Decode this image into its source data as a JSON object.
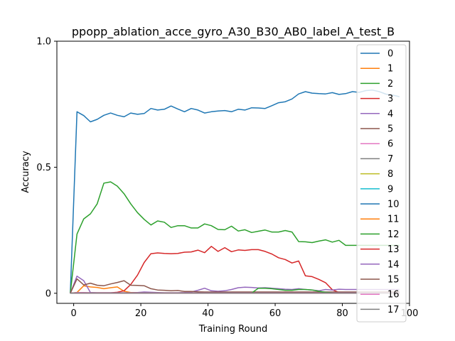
{
  "chart_data": {
    "type": "line",
    "title": "ppopp_ablation_acce_gyro_A30_B30_AB0_label_A_test_B",
    "xlabel": "Training Round",
    "ylabel": "Accuracy",
    "xlim": [
      -5,
      100
    ],
    "ylim": [
      -0.04,
      1.0
    ],
    "xticks": [
      0,
      20,
      40,
      60,
      80,
      100
    ],
    "yticks": [
      0,
      0.5,
      1.0
    ],
    "xtick_labels": [
      "0",
      "20",
      "40",
      "60",
      "80",
      "100"
    ],
    "ytick_labels": [
      "0",
      "0.5",
      "1.0"
    ],
    "grid": false,
    "legend_position": "right",
    "x": [
      -1,
      1,
      3,
      5,
      7,
      9,
      11,
      13,
      15,
      17,
      19,
      21,
      23,
      25,
      27,
      29,
      31,
      33,
      35,
      37,
      39,
      41,
      43,
      45,
      47,
      49,
      51,
      53,
      55,
      57,
      59,
      61,
      63,
      65,
      67,
      69,
      71,
      73,
      75,
      77,
      79,
      81,
      83,
      85,
      87,
      89,
      91,
      93,
      95,
      97
    ],
    "series": [
      {
        "name": "0",
        "color": "#1f77b4",
        "values": [
          0,
          0.72,
          0.705,
          0.68,
          0.69,
          0.706,
          0.715,
          0.706,
          0.7,
          0.715,
          0.71,
          0.713,
          0.733,
          0.727,
          0.73,
          0.743,
          0.731,
          0.72,
          0.733,
          0.727,
          0.715,
          0.72,
          0.723,
          0.725,
          0.72,
          0.73,
          0.727,
          0.736,
          0.735,
          0.733,
          0.744,
          0.756,
          0.76,
          0.771,
          0.791,
          0.8,
          0.794,
          0.792,
          0.791,
          0.796,
          0.789,
          0.792,
          0.8,
          0.797,
          0.804,
          0.806,
          0.8,
          0.79,
          0.786,
          0.78
        ]
      },
      {
        "name": "1",
        "color": "#ff7f0e",
        "values": [
          0,
          0.003,
          0.03,
          0.025,
          0.023,
          0.018,
          0.022,
          0.025,
          0.008,
          0.003,
          0.003,
          0.002,
          0.001,
          0.001,
          0.001,
          0.001,
          0.001,
          0.001,
          0.001,
          0.001,
          0.001,
          0.001,
          0.001,
          0.001,
          0.001,
          0.001,
          0.001,
          0.001,
          0.001,
          0.001,
          0.001,
          0.001,
          0.001,
          0.001,
          0.001,
          0.001,
          0.001,
          0.001,
          0.001,
          0.001,
          0.001,
          0.001,
          0.001,
          0.001,
          0.001,
          0.001,
          0.001,
          0.001,
          0.001,
          0.001
        ]
      },
      {
        "name": "2",
        "color": "#2ca02c",
        "values": [
          0,
          0.235,
          0.295,
          0.315,
          0.355,
          0.437,
          0.442,
          0.425,
          0.395,
          0.355,
          0.32,
          0.293,
          0.271,
          0.287,
          0.282,
          0.261,
          0.268,
          0.268,
          0.259,
          0.259,
          0.275,
          0.268,
          0.253,
          0.252,
          0.266,
          0.247,
          0.252,
          0.241,
          0.246,
          0.251,
          0.243,
          0.243,
          0.249,
          0.243,
          0.205,
          0.204,
          0.201,
          0.207,
          0.212,
          0.203,
          0.21,
          0.19,
          0.19,
          0.19,
          0.19,
          0.19,
          0.19,
          0.19,
          0.19,
          0.19
        ]
      },
      {
        "name": "3",
        "color": "#d62728",
        "values": [
          0,
          0.002,
          0.002,
          0.002,
          0.002,
          0.002,
          0.002,
          0.004,
          0.01,
          0.035,
          0.072,
          0.122,
          0.157,
          0.16,
          0.158,
          0.157,
          0.158,
          0.163,
          0.164,
          0.171,
          0.161,
          0.186,
          0.166,
          0.181,
          0.165,
          0.172,
          0.17,
          0.173,
          0.173,
          0.166,
          0.156,
          0.141,
          0.134,
          0.12,
          0.128,
          0.069,
          0.066,
          0.055,
          0.042,
          0.014,
          0.003,
          0.001,
          0.001,
          0.001,
          0.001,
          0.001,
          0.001,
          0.001,
          0.001,
          0.001
        ]
      },
      {
        "name": "4",
        "color": "#9467bd",
        "values": [
          0,
          0.068,
          0.05,
          0.003,
          0.002,
          0.002,
          0.002,
          0.002,
          0.002,
          0.002,
          0.003,
          0.005,
          0.004,
          0.003,
          0.002,
          0.002,
          0.002,
          0.003,
          0.005,
          0.012,
          0.02,
          0.01,
          0.008,
          0.01,
          0.015,
          0.022,
          0.024,
          0.023,
          0.021,
          0.022,
          0.02,
          0.018,
          0.016,
          0.015,
          0.018,
          0.015,
          0.013,
          0.01,
          0.015,
          0.013,
          0.016,
          0.015,
          0.015,
          0.015,
          0.015,
          0.015,
          0.015,
          0.015,
          0.015,
          0.015
        ]
      },
      {
        "name": "5",
        "color": "#8c564b",
        "values": [
          0,
          0.057,
          0.033,
          0.04,
          0.032,
          0.03,
          0.037,
          0.043,
          0.05,
          0.032,
          0.031,
          0.03,
          0.018,
          0.013,
          0.012,
          0.01,
          0.011,
          0.007,
          0.007,
          0.006,
          0.005,
          0.005,
          0.005,
          0.005,
          0.005,
          0.005,
          0.005,
          0.005,
          0.005,
          0.005,
          0.005,
          0.005,
          0.005,
          0.005,
          0.005,
          0.005,
          0.005,
          0.005,
          0.005,
          0.005,
          0.005,
          0.005,
          0.005,
          0.005,
          0.005,
          0.005,
          0.005,
          0.005,
          0.005,
          0.005
        ]
      },
      {
        "name": "6",
        "color": "#e377c2",
        "values": [
          0,
          0.003,
          0.003,
          0.002,
          0.002,
          0.002,
          0.002,
          0.002,
          0.002,
          0.002,
          0.002,
          0.002,
          0.002,
          0.002,
          0.002,
          0.002,
          0.002,
          0.002,
          0.002,
          0.002,
          0.002,
          0.002,
          0.002,
          0.002,
          0.002,
          0.002,
          0.002,
          0.002,
          0.002,
          0.002,
          0.002,
          0.002,
          0.002,
          0.002,
          0.002,
          0.002,
          0.002,
          0.002,
          0.002,
          0.002,
          0.002,
          0.002,
          0.002,
          0.002,
          0.002,
          0.002,
          0.002,
          0.002,
          0.002,
          0.002
        ]
      },
      {
        "name": "7",
        "color": "#7f7f7f",
        "values": [
          0,
          0.001,
          0.001,
          0.001,
          0.001,
          0.001,
          0.001,
          0.001,
          0.001,
          0.001,
          0.001,
          0.001,
          0.001,
          0.001,
          0.001,
          0.001,
          0.001,
          0.001,
          0.001,
          0.001,
          0.001,
          0.001,
          0.001,
          0.001,
          0.001,
          0.001,
          0.001,
          0.001,
          0.001,
          0.001,
          0.001,
          0.001,
          0.001,
          0.001,
          0.001,
          0.001,
          0.001,
          0.001,
          0.001,
          0.001,
          0.001,
          0.001,
          0.001,
          0.001,
          0.001,
          0.001,
          0.001,
          0.001,
          0.001,
          0.001
        ]
      },
      {
        "name": "8",
        "color": "#bcbd22",
        "values": [
          0,
          0.001,
          0.001,
          0.001,
          0.001,
          0.001,
          0.001,
          0.001,
          0.001,
          0.001,
          0.001,
          0.001,
          0.001,
          0.001,
          0.001,
          0.001,
          0.001,
          0.001,
          0.001,
          0.001,
          0.001,
          0.001,
          0.001,
          0.001,
          0.001,
          0.001,
          0.001,
          0.001,
          0.001,
          0.001,
          0.001,
          0.001,
          0.001,
          0.001,
          0.001,
          0.001,
          0.001,
          0.001,
          0.001,
          0.001,
          0.001,
          0.001,
          0.001,
          0.001,
          0.001,
          0.001,
          0.001,
          0.001,
          0.001,
          0.001
        ]
      },
      {
        "name": "9",
        "color": "#17becf",
        "values": [
          0,
          0.001,
          0.001,
          0.001,
          0.001,
          0.001,
          0.001,
          0.001,
          0.001,
          0.001,
          0.001,
          0.001,
          0.001,
          0.001,
          0.001,
          0.001,
          0.001,
          0.001,
          0.001,
          0.001,
          0.001,
          0.001,
          0.001,
          0.001,
          0.001,
          0.001,
          0.001,
          0.001,
          0.001,
          0.001,
          0.001,
          0.001,
          0.001,
          0.001,
          0.001,
          0.001,
          0.001,
          0.001,
          0.001,
          0.001,
          0.001,
          0.001,
          0.001,
          0.001,
          0.001,
          0.001,
          0.001,
          0.001,
          0.001,
          0.001
        ]
      },
      {
        "name": "10",
        "color": "#1f77b4",
        "values": [
          0,
          0.001,
          0.001,
          0.001,
          0.001,
          0.001,
          0.001,
          0.001,
          0.001,
          0.001,
          0.001,
          0.001,
          0.001,
          0.001,
          0.001,
          0.001,
          0.001,
          0.001,
          0.001,
          0.001,
          0.001,
          0.001,
          0.001,
          0.001,
          0.001,
          0.001,
          0.001,
          0.001,
          0.001,
          0.001,
          0.001,
          0.001,
          0.001,
          0.001,
          0.001,
          0.001,
          0.001,
          0.001,
          0.001,
          0.001,
          0.001,
          0.001,
          0.001,
          0.001,
          0.001,
          0.001,
          0.001,
          0.001,
          0.001,
          0.001
        ]
      },
      {
        "name": "11",
        "color": "#ff7f0e",
        "values": [
          0,
          0.001,
          0.001,
          0.001,
          0.001,
          0.001,
          0.001,
          0.001,
          0.001,
          0.001,
          0.001,
          0.001,
          0.001,
          0.001,
          0.001,
          0.001,
          0.001,
          0.001,
          0.001,
          0.001,
          0.001,
          0.001,
          0.001,
          0.001,
          0.001,
          0.001,
          0.001,
          0.001,
          0.001,
          0.001,
          0.001,
          0.001,
          0.001,
          0.001,
          0.001,
          0.001,
          0.001,
          0.001,
          0.001,
          0.001,
          0.001,
          0.001,
          0.001,
          0.001,
          0.001,
          0.001,
          0.001,
          0.001,
          0.001,
          0.001
        ]
      },
      {
        "name": "12",
        "color": "#2ca02c",
        "values": [
          0,
          0.001,
          0.001,
          0.001,
          0.001,
          0.001,
          0.001,
          0.001,
          0.001,
          0.001,
          0.001,
          0.001,
          0.001,
          0.001,
          0.001,
          0.001,
          0.001,
          0.001,
          0.001,
          0.001,
          0.001,
          0.001,
          0.001,
          0.001,
          0.001,
          0.001,
          0.001,
          0.001,
          0.02,
          0.02,
          0.018,
          0.015,
          0.012,
          0.012,
          0.015,
          0.015,
          0.013,
          0.008,
          0.004,
          0.002,
          0.001,
          0.001,
          0.001,
          0.001,
          0.001,
          0.001,
          0.001,
          0.001,
          0.001,
          0.001
        ]
      },
      {
        "name": "13",
        "color": "#d62728",
        "values": [
          0,
          0.001,
          0.001,
          0.001,
          0.001,
          0.001,
          0.001,
          0.001,
          0.001,
          0.001,
          0.001,
          0.001,
          0.001,
          0.001,
          0.001,
          0.001,
          0.001,
          0.001,
          0.001,
          0.001,
          0.001,
          0.001,
          0.001,
          0.001,
          0.001,
          0.001,
          0.001,
          0.001,
          0.001,
          0.001,
          0.001,
          0.001,
          0.001,
          0.001,
          0.001,
          0.001,
          0.001,
          0.001,
          0.001,
          0.001,
          0.001,
          0.001,
          0.001,
          0.001,
          0.001,
          0.001,
          0.001,
          0.001,
          0.001,
          0.001
        ]
      },
      {
        "name": "14",
        "color": "#9467bd",
        "values": [
          0,
          0.001,
          0.001,
          0.001,
          0.001,
          0.001,
          0.001,
          0.001,
          0.001,
          0.001,
          0.001,
          0.001,
          0.001,
          0.001,
          0.001,
          0.001,
          0.001,
          0.001,
          0.001,
          0.001,
          0.001,
          0.001,
          0.001,
          0.001,
          0.001,
          0.001,
          0.001,
          0.001,
          0.001,
          0.001,
          0.001,
          0.001,
          0.001,
          0.001,
          0.001,
          0.001,
          0.001,
          0.001,
          0.001,
          0.001,
          0.001,
          0.001,
          0.001,
          0.001,
          0.001,
          0.001,
          0.001,
          0.001,
          0.001,
          0.001
        ]
      },
      {
        "name": "15",
        "color": "#8c564b",
        "values": [
          0,
          0.001,
          0.001,
          0.001,
          0.001,
          0.001,
          0.001,
          0.001,
          0.001,
          0.001,
          0.001,
          0.001,
          0.001,
          0.001,
          0.001,
          0.001,
          0.001,
          0.001,
          0.001,
          0.001,
          0.001,
          0.001,
          0.001,
          0.001,
          0.001,
          0.001,
          0.001,
          0.001,
          0.001,
          0.001,
          0.001,
          0.001,
          0.001,
          0.001,
          0.001,
          0.001,
          0.001,
          0.001,
          0.001,
          0.001,
          0.001,
          0.001,
          0.001,
          0.001,
          0.001,
          0.001,
          0.001,
          0.001,
          0.001,
          0.001
        ]
      },
      {
        "name": "16",
        "color": "#e377c2",
        "values": [
          0,
          0.001,
          0.001,
          0.001,
          0.001,
          0.001,
          0.001,
          0.001,
          0.001,
          0.001,
          0.001,
          0.001,
          0.001,
          0.001,
          0.001,
          0.001,
          0.001,
          0.001,
          0.001,
          0.001,
          0.001,
          0.001,
          0.001,
          0.001,
          0.001,
          0.001,
          0.001,
          0.001,
          0.001,
          0.001,
          0.001,
          0.001,
          0.001,
          0.001,
          0.001,
          0.001,
          0.001,
          0.001,
          0.001,
          0.001,
          0.001,
          0.001,
          0.001,
          0.001,
          0.001,
          0.001,
          0.001,
          0.001,
          0.001,
          0.001
        ]
      },
      {
        "name": "17",
        "color": "#7f7f7f",
        "values": [
          0,
          0.001,
          0.001,
          0.001,
          0.001,
          0.001,
          0.001,
          0.001,
          0.001,
          0.001,
          0.001,
          0.001,
          0.001,
          0.001,
          0.001,
          0.001,
          0.001,
          0.001,
          0.001,
          0.001,
          0.001,
          0.001,
          0.001,
          0.001,
          0.001,
          0.001,
          0.001,
          0.001,
          0.001,
          0.001,
          0.001,
          0.001,
          0.001,
          0.001,
          0.001,
          0.001,
          0.001,
          0.001,
          0.001,
          0.001,
          0.001,
          0.001,
          0.001,
          0.001,
          0.001,
          0.001,
          0.001,
          0.001,
          0.001,
          0.001
        ]
      }
    ]
  }
}
